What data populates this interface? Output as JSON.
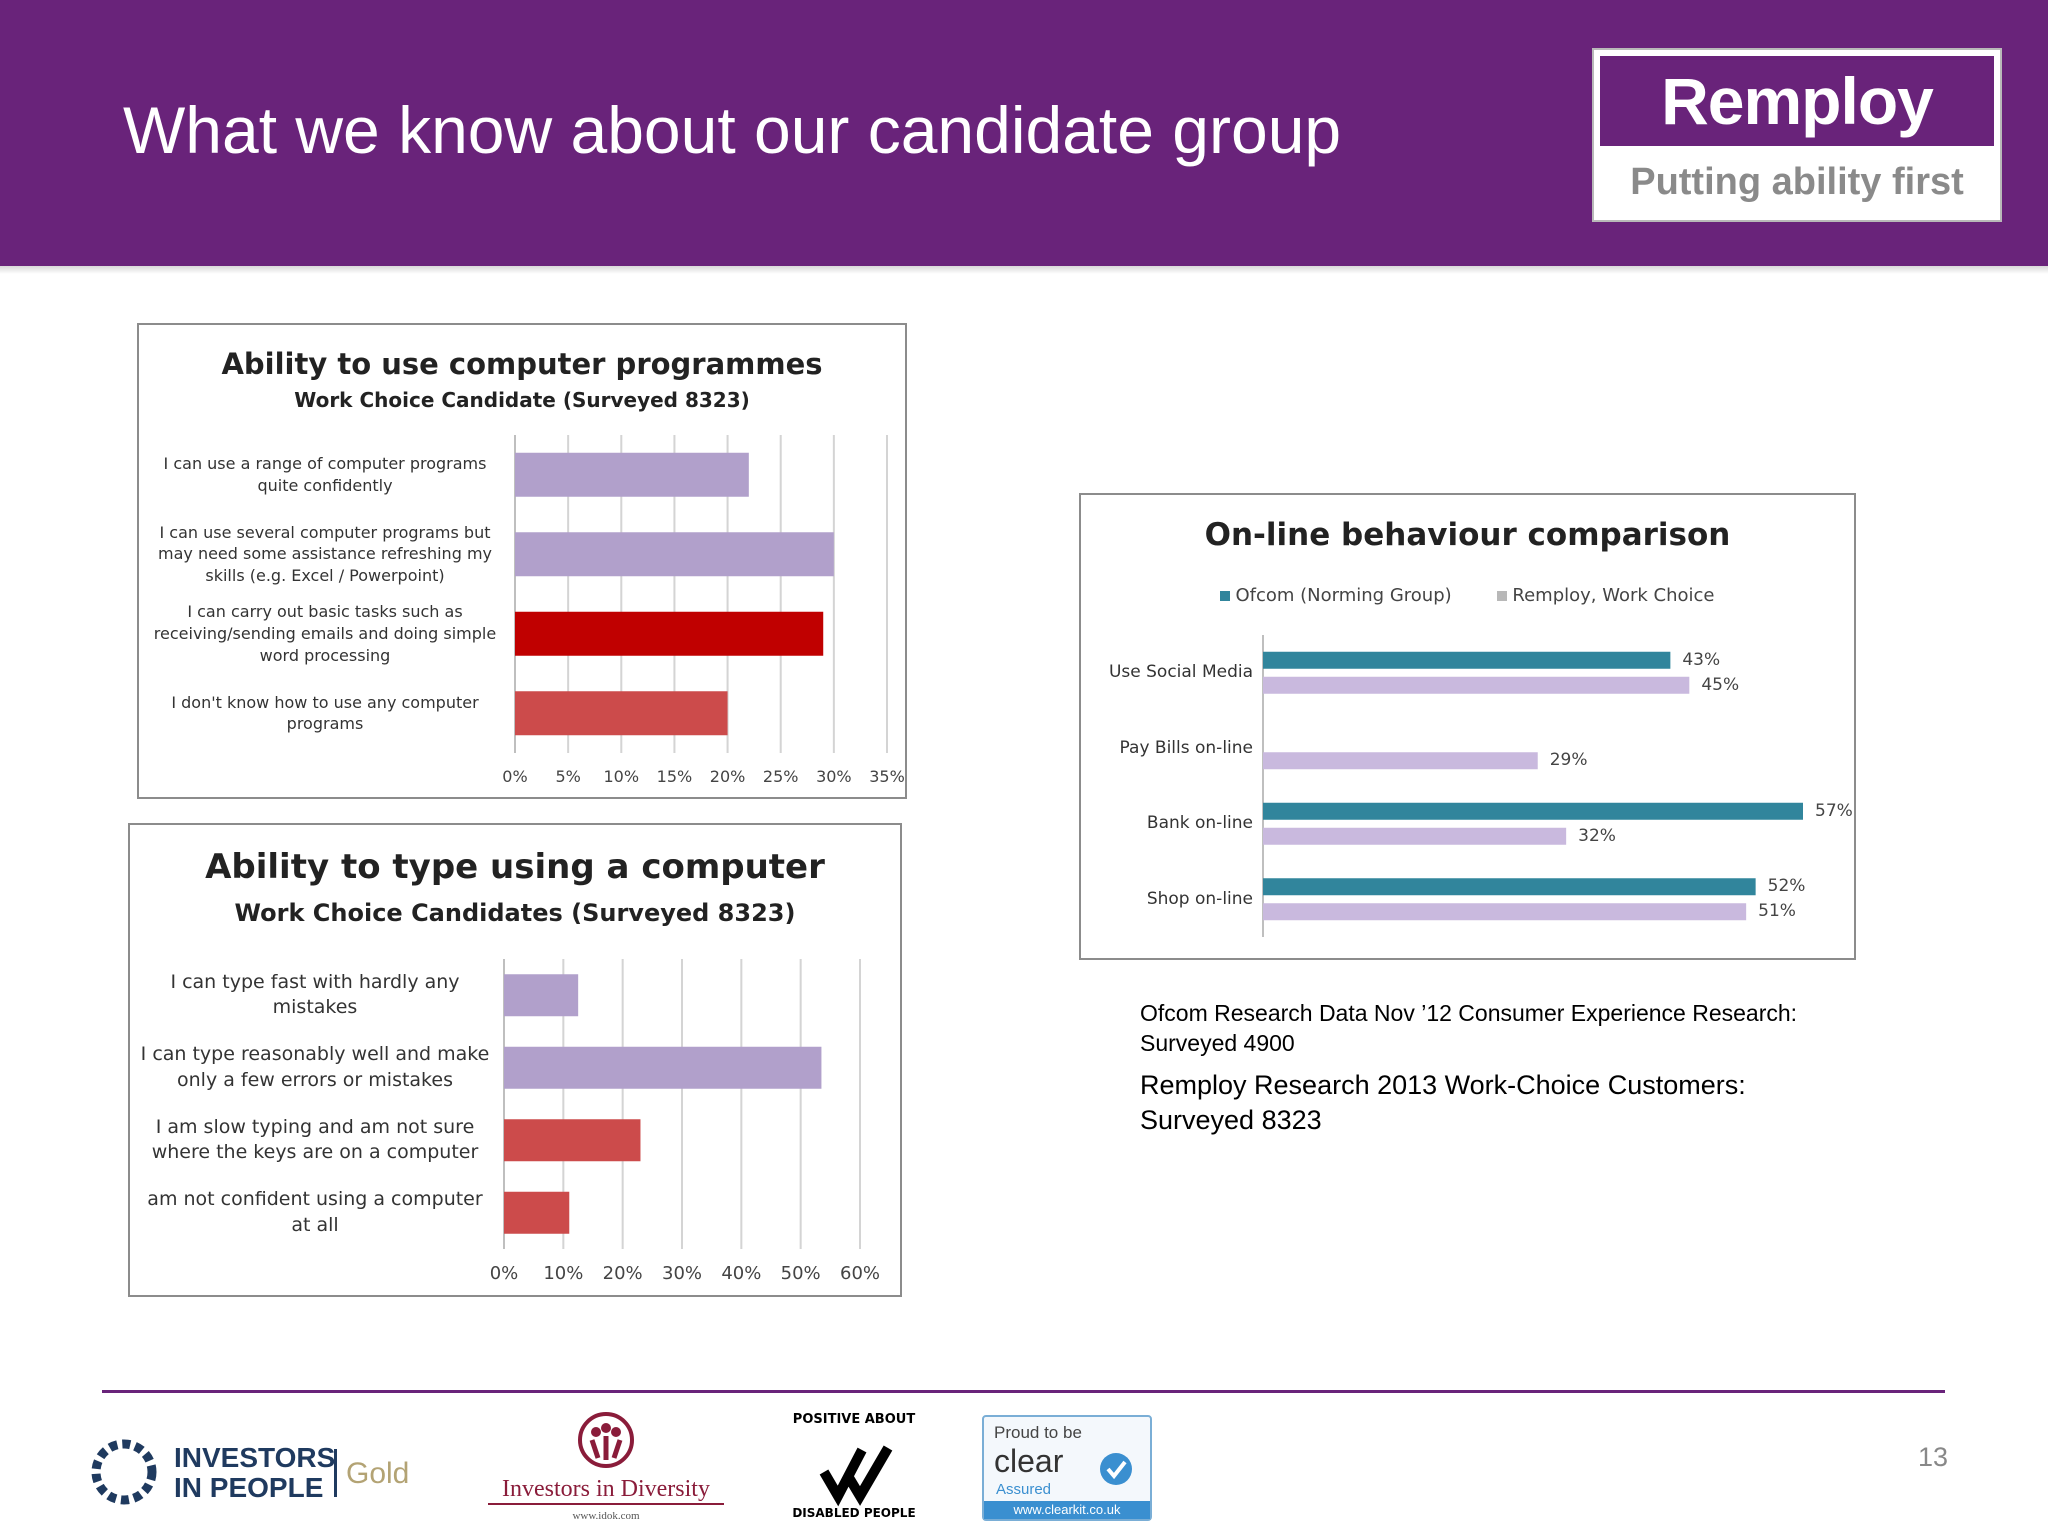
{
  "header": {
    "title": "What we know about our candidate group",
    "logo_name": "Remploy",
    "logo_tagline": "Putting ability first"
  },
  "chart_data": [
    {
      "type": "bar",
      "orientation": "horizontal",
      "title": "Ability to use computer programmes",
      "subtitle": "Work Choice Candidate (Surveyed 8323)",
      "categories": [
        "I can use a range of computer programs quite confidently",
        "I can use several computer programs but may need some assistance refreshing my skills (e.g. Excel / Powerpoint)",
        "I can carry out basic tasks such as receiving/sending emails and doing simple word processing",
        "I don't know how to use any computer programs"
      ],
      "values": [
        22,
        30,
        29,
        20
      ],
      "colors": [
        "#b1a0cb",
        "#b1a0cb",
        "#c00000",
        "#cc4b4b"
      ],
      "xlim": [
        0,
        35
      ],
      "xticks": [
        "0%",
        "5%",
        "10%",
        "15%",
        "20%",
        "25%",
        "30%",
        "35%"
      ],
      "grid": true
    },
    {
      "type": "bar",
      "orientation": "horizontal",
      "title": "Ability to type using a computer",
      "subtitle": "Work Choice Candidates (Surveyed 8323)",
      "categories": [
        "I can type fast with hardly any mistakes",
        "I can type reasonably well and make only a few errors or mistakes",
        "I am slow typing and am not sure where the keys are on a computer",
        "am not confident using a computer at all"
      ],
      "values": [
        12.5,
        53.5,
        23,
        11
      ],
      "colors": [
        "#b1a0cb",
        "#b1a0cb",
        "#cc4b4b",
        "#cc4b4b"
      ],
      "xlim": [
        0,
        60
      ],
      "xticks": [
        "0%",
        "10%",
        "20%",
        "30%",
        "40%",
        "50%",
        "60%"
      ],
      "grid": true
    },
    {
      "type": "bar",
      "orientation": "horizontal",
      "title": "On-line behaviour comparison",
      "categories": [
        "Use Social Media",
        "Pay Bills on-line",
        "Bank on-line",
        "Shop on-line"
      ],
      "series": [
        {
          "name": "Ofcom (Norming Group)",
          "color": "#31859c",
          "values": [
            43,
            null,
            57,
            52
          ],
          "labels": [
            "43%",
            "",
            "57%",
            "52%"
          ]
        },
        {
          "name": "Remploy, Work Choice",
          "color": "#c9b9de",
          "values": [
            45,
            29,
            32,
            51
          ],
          "labels": [
            "45%",
            "29%",
            "32%",
            "51%"
          ]
        }
      ],
      "xlim": [
        0,
        57
      ],
      "legend": "top-center",
      "grid": false
    }
  ],
  "notes": {
    "ofcom": "Ofcom Research Data Nov ’12 Consumer Experience Research: Surveyed 4900",
    "remploy": "Remploy Research 2013  Work-Choice Customers: Surveyed 8323"
  },
  "footer": {
    "iip_line1": "INVESTORS",
    "iip_line2": "IN PEOPLE",
    "iip_gold": "Gold",
    "diversity": "Investors in Diversity",
    "diversity_url": "www.idok.com",
    "positive_top": "POSITIVE ABOUT",
    "positive_bottom": "DISABLED PEOPLE",
    "clear_proud": "Proud to be",
    "clear_name": "clear",
    "clear_assured": "Assured",
    "clear_url": "www.clearkit.co.uk",
    "page_number": "13"
  },
  "colors": {
    "brand_purple": "#69237a",
    "lavender_bar": "#b1a0cb",
    "red_bar": "#c00000",
    "light_red_bar": "#cc4b4b",
    "teal_bar": "#31859c"
  }
}
